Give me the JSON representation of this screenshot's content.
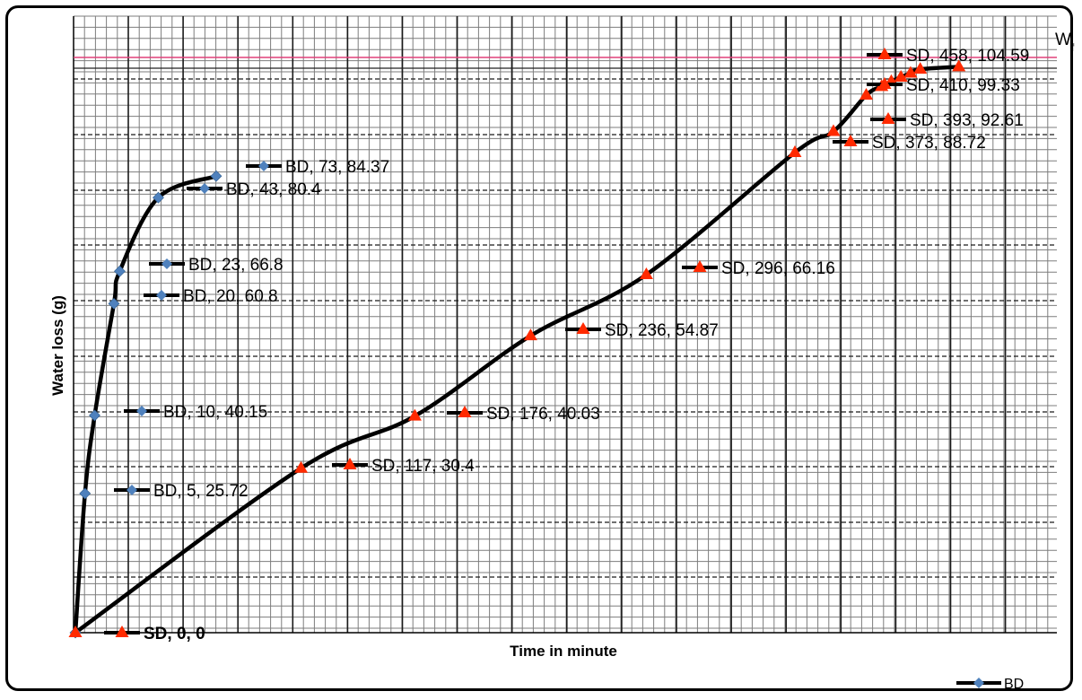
{
  "chart_data": {
    "type": "line",
    "xlabel": "Time in minute",
    "ylabel": "Water loss (g)",
    "reference_line": {
      "label": "Wf",
      "label_main": "W",
      "label_sub": "f",
      "color": "#e0407a"
    },
    "grid": true,
    "legend": {
      "placement": "bottom-right",
      "entries": [
        "BD"
      ]
    },
    "series": [
      {
        "name": "BD",
        "marker": "diamond",
        "marker_color": "#4f81bd",
        "line_color": "#000000",
        "points": [
          {
            "x": 0,
            "y": 0
          },
          {
            "x": 5,
            "y": 25.72
          },
          {
            "x": 10,
            "y": 40.15
          },
          {
            "x": 20,
            "y": 60.8
          },
          {
            "x": 23,
            "y": 66.8
          },
          {
            "x": 43,
            "y": 80.4
          },
          {
            "x": 73,
            "y": 84.37
          }
        ],
        "labels": [
          "SD, 0, 0",
          "BD, 5, 25.72",
          "BD, 10, 40.15",
          "BD, 20, 60.8",
          "BD, 23, 66.8",
          "BD, 43, 80.4",
          "BD, 73, 84.37"
        ]
      },
      {
        "name": "SD",
        "marker": "triangle",
        "marker_color": "#ff2a00",
        "line_color": "#000000",
        "points": [
          {
            "x": 0,
            "y": 0
          },
          {
            "x": 117,
            "y": 30.4
          },
          {
            "x": 176,
            "y": 40.03
          },
          {
            "x": 236,
            "y": 54.87
          },
          {
            "x": 296,
            "y": 66.16
          },
          {
            "x": 373,
            "y": 88.72
          },
          {
            "x": 393,
            "y": 92.61
          },
          {
            "x": 410,
            "y": 99.33
          },
          {
            "x": 418,
            "y": 100.94
          },
          {
            "x": 423,
            "y": 101.86
          },
          {
            "x": 428,
            "y": 102.66
          },
          {
            "x": 433,
            "y": 103.39
          },
          {
            "x": 438,
            "y": 104.12
          },
          {
            "x": 458,
            "y": 104.59
          }
        ],
        "labels": [
          "SD, 0, 0",
          "SD, 117, 30.4",
          "SD, 176, 40.03",
          "SD, 236, 54.87",
          "SD, 296, 66.16",
          "SD, 373, 88.72",
          "SD, 393, 92.61",
          "SD, 410, 99.33",
          "SD, 458, 104.59"
        ]
      }
    ]
  }
}
